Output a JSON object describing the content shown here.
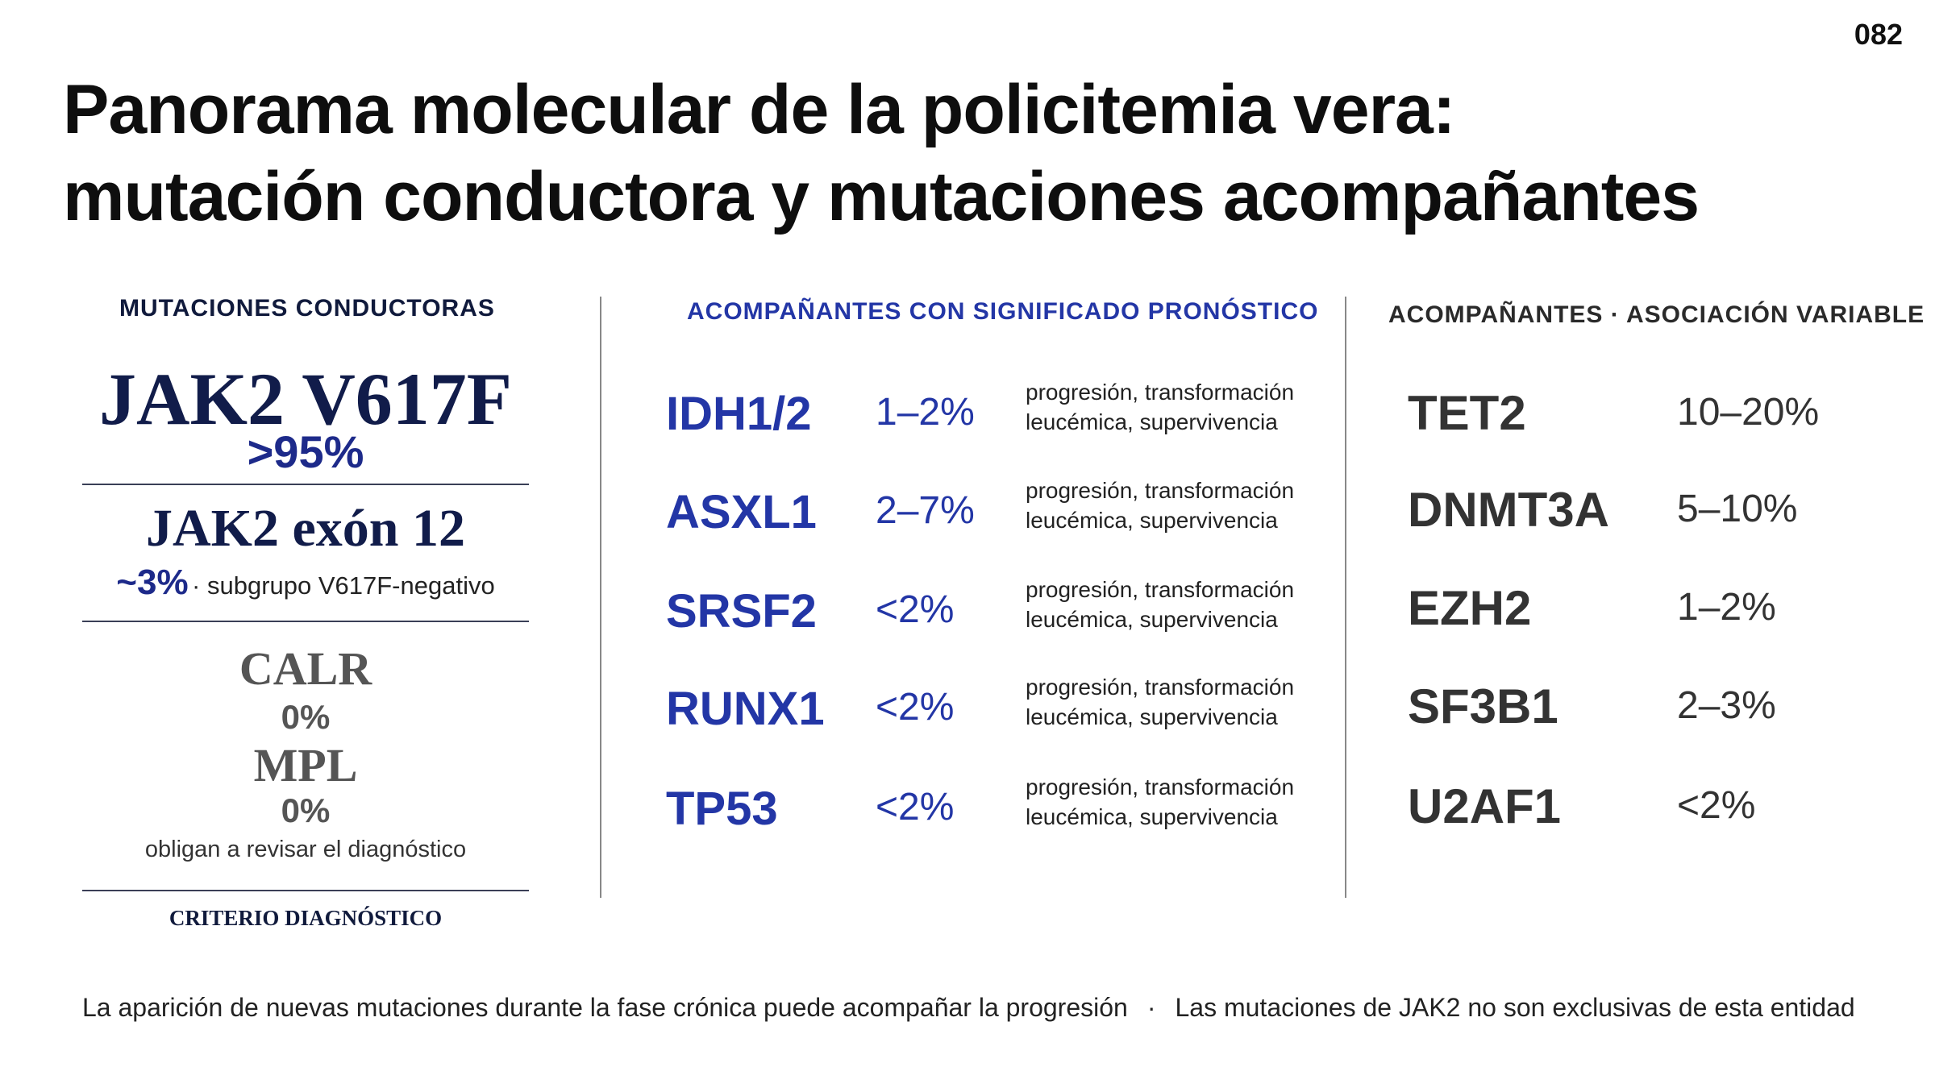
{
  "page_number": "082",
  "title": {
    "line1": "Panorama molecular de la policitemia vera:",
    "line2": "mutación conductora y mutaciones acompañantes"
  },
  "left": {
    "heading": "MUTACIONES CONDUCTORAS",
    "jak2_v617f": {
      "name": "JAK2 V617F",
      "pct": ">95%"
    },
    "jak2_exon12": {
      "name": "JAK2 exón 12",
      "pct": "~3%",
      "note": "· subgrupo V617F-negativo"
    },
    "calr": {
      "name": "CALR",
      "pct": "0%"
    },
    "mpl": {
      "name": "MPL",
      "pct": "0%"
    },
    "revisar": "obligan a revisar el diagnóstico",
    "footer": "CRITERIO DIAGNÓSTICO"
  },
  "middle": {
    "heading": "ACOMPAÑANTES CON SIGNIFICADO PRONÓSTICO",
    "rows": [
      {
        "gene": "IDH1/2",
        "pct": "1–2%",
        "note1": "progresión, transformación",
        "note2": "leucémica, supervivencia"
      },
      {
        "gene": "ASXL1",
        "pct": "2–7%",
        "note1": "progresión, transformación",
        "note2": "leucémica, supervivencia"
      },
      {
        "gene": "SRSF2",
        "pct": "<2%",
        "note1": "progresión, transformación",
        "note2": "leucémica, supervivencia"
      },
      {
        "gene": "RUNX1",
        "pct": "<2%",
        "note1": "progresión, transformación",
        "note2": "leucémica, supervivencia"
      },
      {
        "gene": "TP53",
        "pct": "<2%",
        "note1": "progresión, transformación",
        "note2": "leucémica, supervivencia"
      }
    ]
  },
  "right": {
    "heading": "ACOMPAÑANTES · ASOCIACIÓN VARIABLE",
    "rows": [
      {
        "gene": "TET2",
        "pct": "10–20%"
      },
      {
        "gene": "DNMT3A",
        "pct": "5–10%"
      },
      {
        "gene": "EZH2",
        "pct": "1–2%"
      },
      {
        "gene": "SF3B1",
        "pct": "2–3%"
      },
      {
        "gene": "U2AF1",
        "pct": "<2%"
      }
    ]
  },
  "footer": {
    "left": "La aparición de nuevas mutaciones durante la fase crónica puede acompañar la progresión",
    "separator": "·",
    "right": "Las mutaciones de JAK2 no son exclusivas de esta entidad"
  }
}
